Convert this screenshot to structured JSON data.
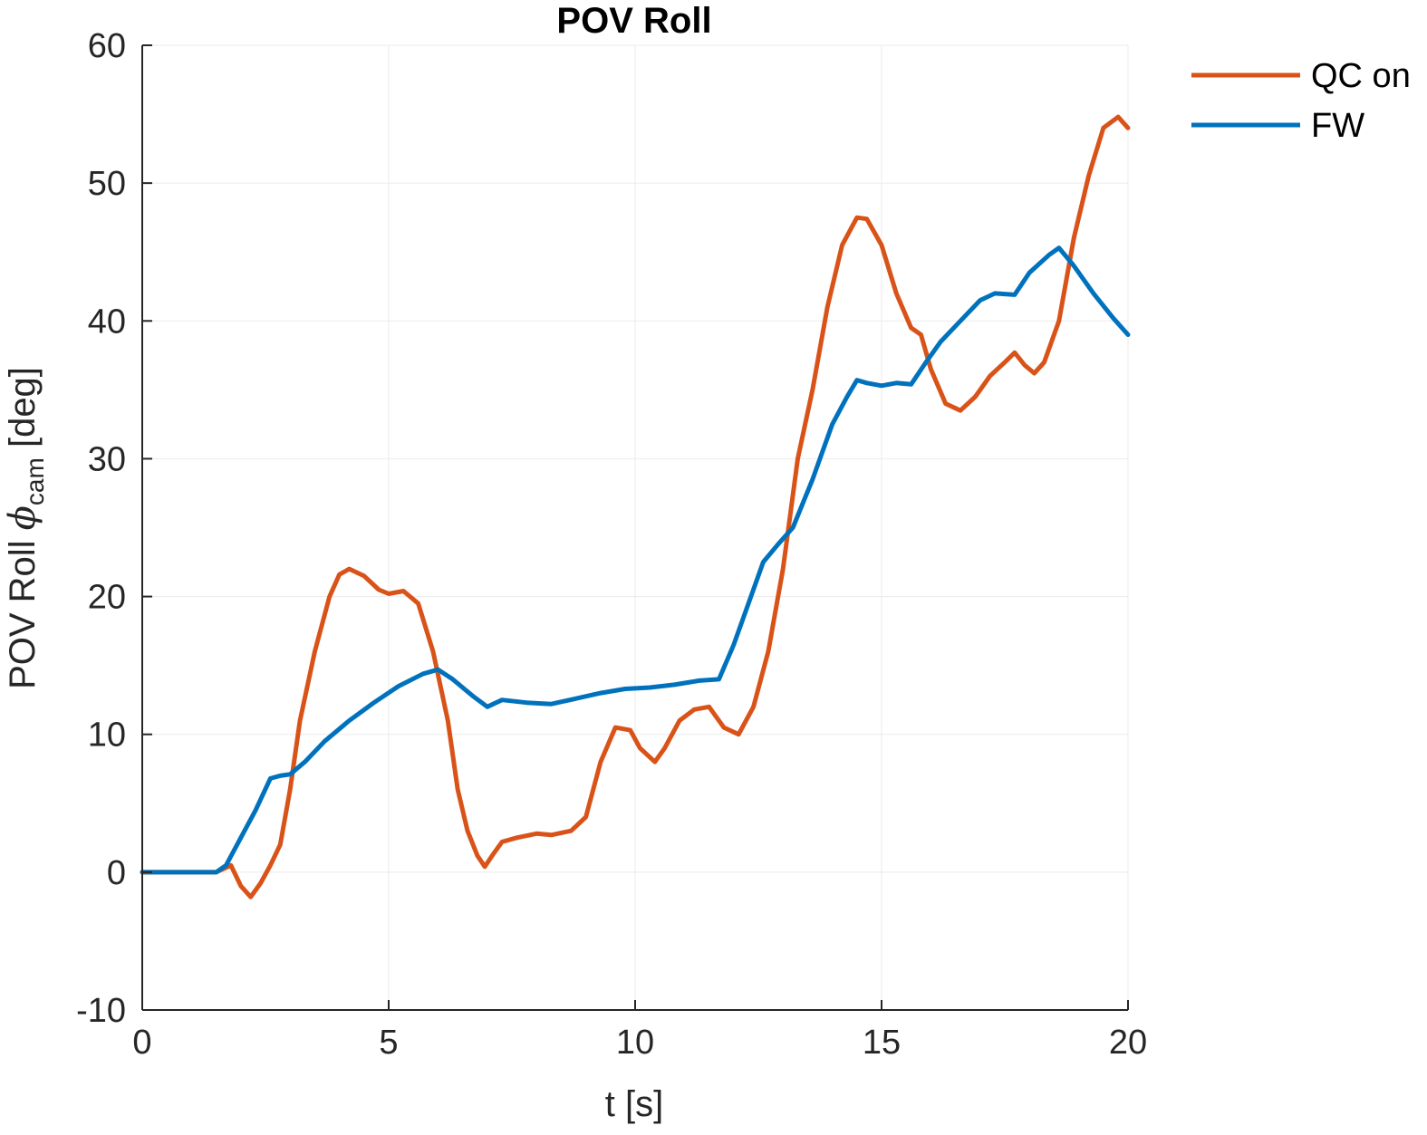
{
  "chart_data": {
    "type": "line",
    "title": "POV Roll",
    "xlabel": "t [s]",
    "ylabel": {
      "prefix": "POV Roll ",
      "symbol": "ϕ",
      "subscript": "cam",
      "suffix": " [deg]"
    },
    "xlim": [
      0,
      20
    ],
    "ylim": [
      -10,
      60
    ],
    "xticks": [
      0,
      5,
      10,
      15,
      20
    ],
    "yticks": [
      -10,
      0,
      10,
      20,
      30,
      40,
      50,
      60
    ],
    "grid": true,
    "legend_position": "top-right-outside",
    "series": [
      {
        "name": "QC on",
        "color": "#D95319",
        "points": [
          [
            0,
            0
          ],
          [
            1.5,
            0
          ],
          [
            1.8,
            0.5
          ],
          [
            2.0,
            -1.0
          ],
          [
            2.2,
            -1.8
          ],
          [
            2.4,
            -0.8
          ],
          [
            2.6,
            0.5
          ],
          [
            2.8,
            2.0
          ],
          [
            3.0,
            6.0
          ],
          [
            3.2,
            11.0
          ],
          [
            3.5,
            16.0
          ],
          [
            3.8,
            20.0
          ],
          [
            4.0,
            21.6
          ],
          [
            4.2,
            22.0
          ],
          [
            4.5,
            21.5
          ],
          [
            4.8,
            20.5
          ],
          [
            5.0,
            20.2
          ],
          [
            5.3,
            20.4
          ],
          [
            5.6,
            19.5
          ],
          [
            5.9,
            16.0
          ],
          [
            6.2,
            11.0
          ],
          [
            6.4,
            6.0
          ],
          [
            6.6,
            3.0
          ],
          [
            6.8,
            1.2
          ],
          [
            6.95,
            0.4
          ],
          [
            7.1,
            1.2
          ],
          [
            7.3,
            2.2
          ],
          [
            7.6,
            2.5
          ],
          [
            8.0,
            2.8
          ],
          [
            8.3,
            2.7
          ],
          [
            8.7,
            3.0
          ],
          [
            9.0,
            4.0
          ],
          [
            9.3,
            8.0
          ],
          [
            9.6,
            10.5
          ],
          [
            9.9,
            10.3
          ],
          [
            10.1,
            9.0
          ],
          [
            10.4,
            8.0
          ],
          [
            10.6,
            9.0
          ],
          [
            10.9,
            11.0
          ],
          [
            11.2,
            11.8
          ],
          [
            11.5,
            12.0
          ],
          [
            11.8,
            10.5
          ],
          [
            12.1,
            10.0
          ],
          [
            12.4,
            12.0
          ],
          [
            12.7,
            16.0
          ],
          [
            13.0,
            22.0
          ],
          [
            13.3,
            30.0
          ],
          [
            13.6,
            35.0
          ],
          [
            13.9,
            41.0
          ],
          [
            14.2,
            45.5
          ],
          [
            14.5,
            47.5
          ],
          [
            14.7,
            47.4
          ],
          [
            15.0,
            45.5
          ],
          [
            15.3,
            42.0
          ],
          [
            15.6,
            39.5
          ],
          [
            15.8,
            39.0
          ],
          [
            16.0,
            36.5
          ],
          [
            16.3,
            34.0
          ],
          [
            16.6,
            33.5
          ],
          [
            16.9,
            34.5
          ],
          [
            17.2,
            36.0
          ],
          [
            17.5,
            37.0
          ],
          [
            17.7,
            37.7
          ],
          [
            17.9,
            36.8
          ],
          [
            18.1,
            36.2
          ],
          [
            18.3,
            37.0
          ],
          [
            18.6,
            40.0
          ],
          [
            18.9,
            46.0
          ],
          [
            19.2,
            50.5
          ],
          [
            19.5,
            54.0
          ],
          [
            19.8,
            54.8
          ],
          [
            20.0,
            54.0
          ]
        ]
      },
      {
        "name": "FW",
        "color": "#0072BD",
        "points": [
          [
            0,
            0
          ],
          [
            1.5,
            0
          ],
          [
            1.7,
            0.5
          ],
          [
            2.0,
            2.5
          ],
          [
            2.3,
            4.5
          ],
          [
            2.6,
            6.8
          ],
          [
            2.8,
            7.0
          ],
          [
            3.0,
            7.1
          ],
          [
            3.3,
            8.0
          ],
          [
            3.7,
            9.5
          ],
          [
            4.2,
            11.0
          ],
          [
            4.7,
            12.3
          ],
          [
            5.2,
            13.5
          ],
          [
            5.7,
            14.4
          ],
          [
            6.0,
            14.7
          ],
          [
            6.3,
            14.0
          ],
          [
            6.7,
            12.8
          ],
          [
            7.0,
            12.0
          ],
          [
            7.3,
            12.5
          ],
          [
            7.8,
            12.3
          ],
          [
            8.3,
            12.2
          ],
          [
            8.8,
            12.6
          ],
          [
            9.3,
            13.0
          ],
          [
            9.8,
            13.3
          ],
          [
            10.3,
            13.4
          ],
          [
            10.8,
            13.6
          ],
          [
            11.3,
            13.9
          ],
          [
            11.7,
            14.0
          ],
          [
            12.0,
            16.5
          ],
          [
            12.3,
            19.5
          ],
          [
            12.6,
            22.5
          ],
          [
            12.9,
            23.8
          ],
          [
            13.2,
            25.0
          ],
          [
            13.6,
            28.5
          ],
          [
            14.0,
            32.5
          ],
          [
            14.3,
            34.5
          ],
          [
            14.5,
            35.7
          ],
          [
            14.7,
            35.5
          ],
          [
            15.0,
            35.3
          ],
          [
            15.3,
            35.5
          ],
          [
            15.6,
            35.4
          ],
          [
            15.9,
            37.0
          ],
          [
            16.2,
            38.5
          ],
          [
            16.6,
            40.0
          ],
          [
            17.0,
            41.5
          ],
          [
            17.3,
            42.0
          ],
          [
            17.7,
            41.9
          ],
          [
            18.0,
            43.5
          ],
          [
            18.4,
            44.8
          ],
          [
            18.6,
            45.3
          ],
          [
            18.9,
            44.0
          ],
          [
            19.3,
            42.0
          ],
          [
            19.7,
            40.2
          ],
          [
            20.0,
            39.0
          ]
        ]
      }
    ]
  }
}
